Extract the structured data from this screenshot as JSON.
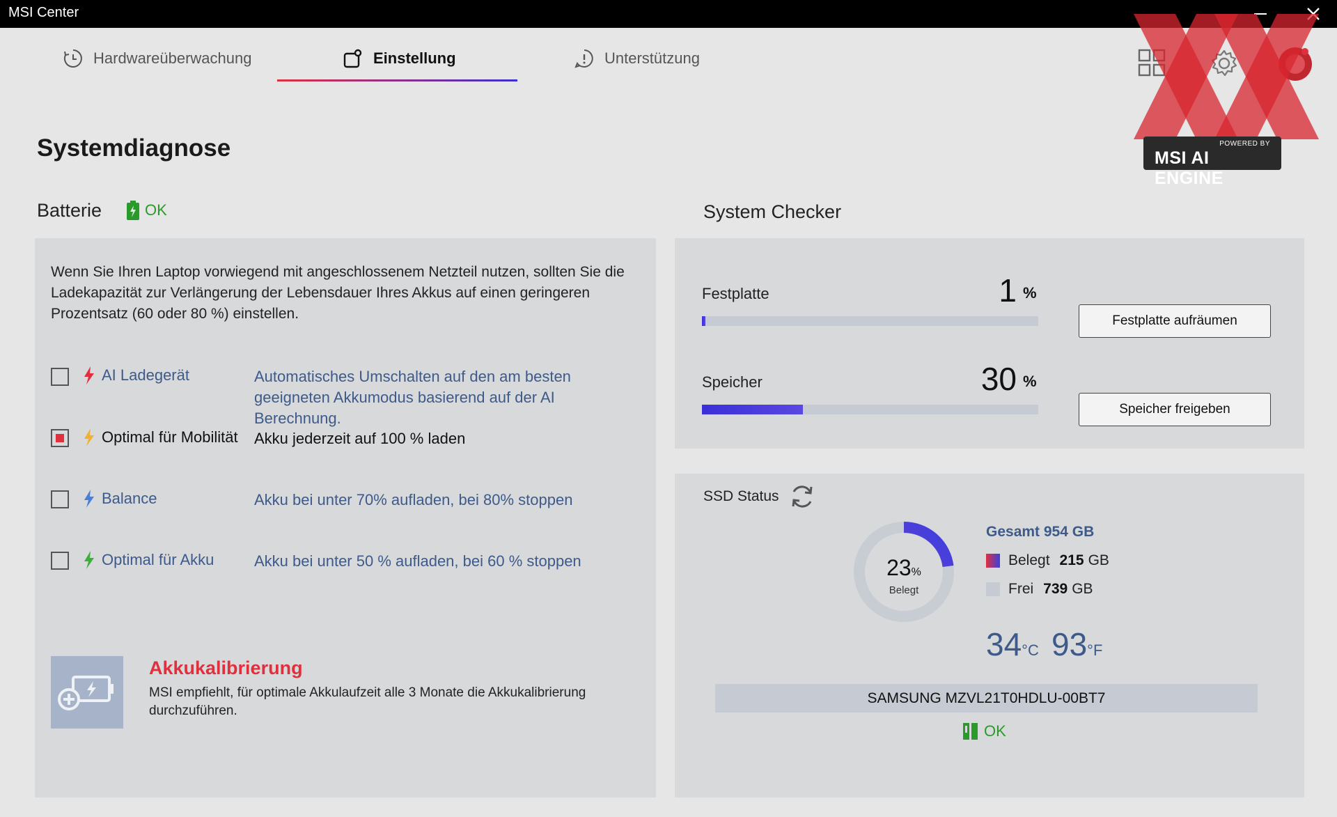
{
  "window": {
    "title": "MSI Center",
    "minimize_label": "–",
    "close_label": "✕"
  },
  "tabs": [
    {
      "label": "Hardwareüberwachung",
      "icon": "clock-icon"
    },
    {
      "label": "Einstellung",
      "icon": "settings-tab-icon",
      "active": true
    },
    {
      "label": "Unterstützung",
      "icon": "alert-bubble-icon"
    }
  ],
  "header_icons": [
    "apps-grid-icon",
    "gear-icon",
    "profile-icon"
  ],
  "logo": {
    "powered_by": "POWERED BY",
    "engine": "MSI AI ENGINE"
  },
  "page_title": "Systemdiagnose",
  "battery": {
    "title": "Batterie",
    "status": "OK",
    "intro": "Wenn Sie Ihren Laptop vorwiegend mit angeschlossenem Netzteil nutzen, sollten Sie die Ladekapazität zur Verlängerung der Lebensdauer Ihres Akkus auf einen geringeren Prozentsatz (60 oder 80 %) einstellen.",
    "options": [
      {
        "label": "AI Ladegerät",
        "desc": "Automatisches Umschalten auf den am besten geeigneten Akkumodus basierend auf der AI Berechnung.",
        "checked": false,
        "bolt_color": "#e0303e"
      },
      {
        "label": "Optimal für Mobilität",
        "desc": "Akku jederzeit auf 100 % laden",
        "checked": true,
        "bolt_color": "#f0b030"
      },
      {
        "label": "Balance",
        "desc": "Akku bei unter 70% aufladen, bei 80% stoppen",
        "checked": false,
        "bolt_color": "#4a7fd8"
      },
      {
        "label": "Optimal für Akku",
        "desc": "Akku bei unter 50 % aufladen, bei 60 % stoppen",
        "checked": false,
        "bolt_color": "#3cae3c"
      }
    ],
    "calibration": {
      "title": "Akkukalibrierung",
      "text": "MSI empfiehlt, für optimale Akkulaufzeit alle 3 Monate die Akkukalibrierung durchzuführen."
    }
  },
  "system_checker": {
    "title": "System Checker",
    "disk": {
      "label": "Festplatte",
      "value": "1",
      "unit": "%",
      "percent": 1,
      "button": "Festplatte aufräumen"
    },
    "memory": {
      "label": "Speicher",
      "value": "30",
      "unit": "%",
      "percent": 30,
      "button": "Speicher freigeben"
    }
  },
  "ssd": {
    "title": "SSD Status",
    "used_percent": 23,
    "used_percent_text": "23",
    "percent_unit": "%",
    "used_caption": "Belegt",
    "total": "Gesamt 954 GB",
    "used_label": "Belegt",
    "used_value": "215",
    "free_label": "Frei",
    "free_value": "739",
    "unit": "GB",
    "temp_c": "34",
    "temp_c_unit": "°C",
    "temp_f": "93",
    "temp_f_unit": "°F",
    "model": "SAMSUNG MZVL21T0HDLU-00BT7",
    "status": "OK"
  },
  "colors": {
    "accent_red": "#e0303e",
    "accent_blue": "#3a2fd8",
    "ok_green": "#2a9b2a",
    "link_blue": "#3d5a8a"
  }
}
